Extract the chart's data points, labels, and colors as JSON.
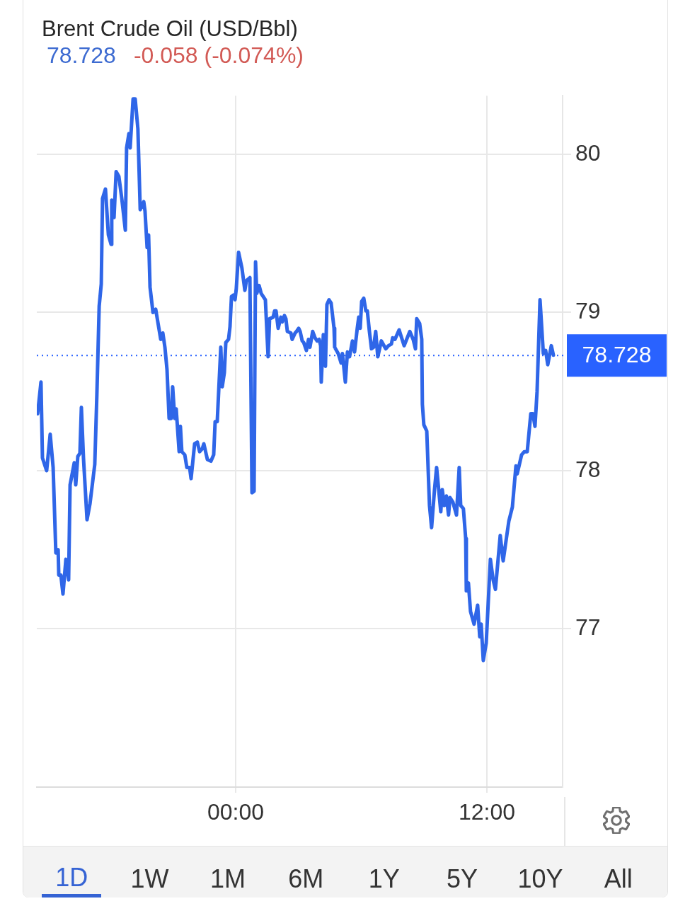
{
  "chart_data": {
    "type": "line",
    "title": "Brent Crude Oil (USD/Bbl)",
    "subtitle": "78.728",
    "annotations": [
      "-0.058 (-0.074%)",
      "1D",
      "1W",
      "1M",
      "6M",
      "1Y",
      "5Y",
      "10Y",
      "All"
    ],
    "x": [
      -9.46,
      -9.3,
      -9.23,
      -9.03,
      -8.86,
      -8.72,
      -8.59,
      -8.48,
      -8.45,
      -8.35,
      -8.25,
      -8.11,
      -7.98,
      -7.91,
      -7.71,
      -7.64,
      -7.54,
      -7.44,
      -7.37,
      -7.27,
      -7.1,
      -6.96,
      -6.73,
      -6.63,
      -6.52,
      -6.42,
      -6.36,
      -6.22,
      -6.08,
      -5.95,
      -5.92,
      -5.81,
      -5.71,
      -5.58,
      -5.44,
      -5.27,
      -5.21,
      -5.1,
      -5.04,
      -4.9,
      -4.8,
      -4.67,
      -4.56,
      -4.39,
      -4.33,
      -4.23,
      -4.16,
      -4.09,
      -3.95,
      -3.82,
      -3.58,
      -3.48,
      -3.38,
      -3.28,
      -3.18,
      -3.08,
      -3.01,
      -2.91,
      -2.84,
      -2.7,
      -2.64,
      -2.57,
      -2.43,
      -2.33,
      -2.2,
      -2.13,
      -1.96,
      -1.83,
      -1.72,
      -1.59,
      -1.52,
      -1.35,
      -1.18,
      -1.05,
      -0.98,
      -0.88,
      -0.71,
      -0.64,
      -0.54,
      -0.47,
      -0.34,
      -0.27,
      -0.2,
      -0.1,
      -0.03,
      0.03,
      0.14,
      0.3,
      0.44,
      0.51,
      0.68,
      0.78,
      0.88,
      0.95,
      1.01,
      1.12,
      1.22,
      1.42,
      1.55,
      1.62,
      1.79,
      1.86,
      1.93,
      2.03,
      2.16,
      2.23,
      2.33,
      2.4,
      2.47,
      2.64,
      2.7,
      2.84,
      2.91,
      3.01,
      3.08,
      3.18,
      3.25,
      3.38,
      3.48,
      3.55,
      3.68,
      3.79,
      3.89,
      3.99,
      4.06,
      4.09,
      4.19,
      4.29,
      4.36,
      4.46,
      4.56,
      4.7,
      4.73,
      4.9,
      5.04,
      5.1,
      5.24,
      5.34,
      5.44,
      5.58,
      5.68,
      5.81,
      5.88,
      5.95,
      6.02,
      6.12,
      6.22,
      6.29,
      6.39,
      6.49,
      6.59,
      6.69,
      6.79,
      6.96,
      7.17,
      7.3,
      7.44,
      7.5,
      7.61,
      7.81,
      7.88,
      8.05,
      8.32,
      8.48,
      8.59,
      8.65,
      8.79,
      8.89,
      8.92,
      8.99,
      9.13,
      9.26,
      9.36,
      9.5,
      9.6,
      9.8,
      9.87,
      9.97,
      10.07,
      10.17,
      10.24,
      10.38,
      10.55,
      10.68,
      10.75,
      10.88,
      10.99,
      11.02,
      11.12,
      11.22,
      11.39,
      11.56,
      11.66,
      11.73,
      11.83,
      11.97,
      12.17,
      12.3,
      12.41,
      12.64,
      12.78,
      13.05,
      13.22,
      13.39,
      13.45,
      13.66,
      13.79,
      13.93,
      14.1,
      14.2,
      14.3,
      14.4,
      14.54,
      14.7,
      14.81,
      14.91,
      15.08,
      15.18
    ],
    "values": [
      78.36,
      78.56,
      78.08,
      78.0,
      78.23,
      78.02,
      77.48,
      77.5,
      77.34,
      77.34,
      77.22,
      77.44,
      77.31,
      77.91,
      78.05,
      77.91,
      78.09,
      78.11,
      78.4,
      78.08,
      77.69,
      77.79,
      78.04,
      78.48,
      79.04,
      79.18,
      79.72,
      79.78,
      79.49,
      79.43,
      79.71,
      79.6,
      79.89,
      79.86,
      79.72,
      79.52,
      80.04,
      80.13,
      80.04,
      80.35,
      80.35,
      80.16,
      79.65,
      79.7,
      79.64,
      79.41,
      79.49,
      79.16,
      79.0,
      79.02,
      78.83,
      78.87,
      78.78,
      78.64,
      78.33,
      78.33,
      78.53,
      78.33,
      78.39,
      78.12,
      78.28,
      78.12,
      78.1,
      78.02,
      78.02,
      77.95,
      78.17,
      78.18,
      78.12,
      78.14,
      78.17,
      78.07,
      78.06,
      78.1,
      78.31,
      78.31,
      78.78,
      78.53,
      78.62,
      78.81,
      78.83,
      78.91,
      79.1,
      79.11,
      79.08,
      79.15,
      79.38,
      79.28,
      79.14,
      79.2,
      79.22,
      77.86,
      77.87,
      79.32,
      79.12,
      79.17,
      79.12,
      79.08,
      78.72,
      78.96,
      78.97,
      79.01,
      79.01,
      78.9,
      78.97,
      78.94,
      78.98,
      78.96,
      78.88,
      78.87,
      78.83,
      78.87,
      78.88,
      78.9,
      78.88,
      78.82,
      78.81,
      78.76,
      78.83,
      78.78,
      78.88,
      78.84,
      78.82,
      78.83,
      78.79,
      78.56,
      78.86,
      78.66,
      79.05,
      79.08,
      79.06,
      78.9,
      78.78,
      78.74,
      78.68,
      78.74,
      78.56,
      78.75,
      78.72,
      78.82,
      78.75,
      78.9,
      78.97,
      78.9,
      79.07,
      79.09,
      79.01,
      79.01,
      78.88,
      78.77,
      78.78,
      78.88,
      78.72,
      78.82,
      78.77,
      78.79,
      78.8,
      78.84,
      78.83,
      78.89,
      78.86,
      78.79,
      78.88,
      78.83,
      78.77,
      78.96,
      78.93,
      78.83,
      78.42,
      78.29,
      78.25,
      77.78,
      77.64,
      77.88,
      78.02,
      77.74,
      77.88,
      77.78,
      77.84,
      77.72,
      77.83,
      77.8,
      77.72,
      78.02,
      77.78,
      77.76,
      77.57,
      77.24,
      77.29,
      77.11,
      77.03,
      77.15,
      76.95,
      77.03,
      76.8,
      76.91,
      77.44,
      77.31,
      77.25,
      77.59,
      77.43,
      77.68,
      77.77,
      78.03,
      77.98,
      78.1,
      78.12,
      78.12,
      78.36,
      78.36,
      78.28,
      78.5,
      79.08,
      78.74,
      78.76,
      78.67,
      78.79,
      78.73
    ],
    "color": "#2f66e8",
    "xlim": [
      -9.5,
      15.62
    ],
    "xticks": [
      {
        "value": 0,
        "label": "00:00"
      },
      {
        "value": 12,
        "label": "12:00"
      }
    ],
    "ylim": [
      76,
      80.37
    ],
    "yticks": [
      77,
      78,
      79,
      80
    ],
    "grid": true,
    "legend": false,
    "marker": "none",
    "line_style": "solid",
    "ref_lines": [
      {
        "axis": "y",
        "value": 78.728,
        "label": "78.728",
        "color": "#2962ff",
        "line_style": "dotted"
      }
    ]
  }
}
